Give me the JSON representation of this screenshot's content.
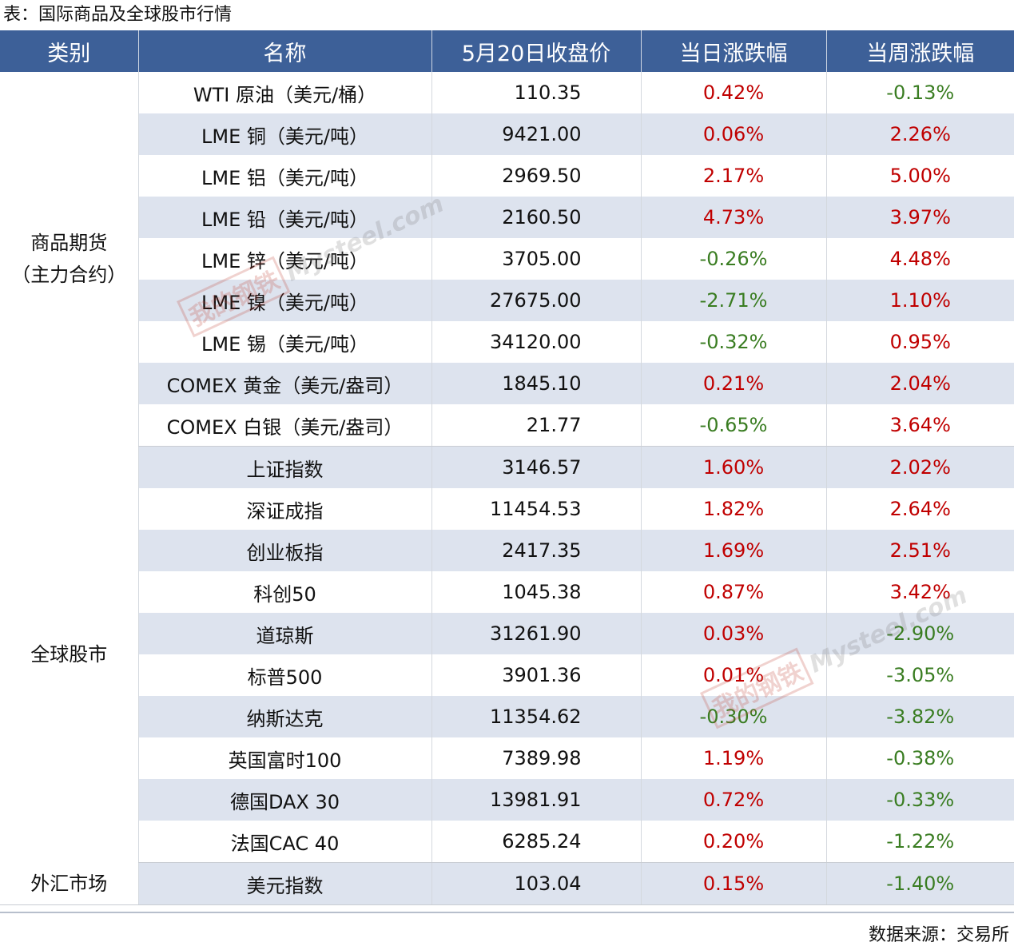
{
  "caption": "表：国际商品及全球股市行情",
  "headers": {
    "category": "类别",
    "name": "名称",
    "price": "5月20日收盘价",
    "daily": "当日涨跌幅",
    "weekly": "当周涨跌幅"
  },
  "groups": [
    {
      "category_line1": "商品期货",
      "category_line2": "（主力合约）",
      "rows": [
        {
          "name": "WTI 原油（美元/桶）",
          "price": "110.35",
          "daily": "0.42%",
          "weekly": "-0.13%"
        },
        {
          "name": "LME 铜（美元/吨）",
          "price": "9421.00",
          "daily": "0.06%",
          "weekly": "2.26%"
        },
        {
          "name": "LME 铝（美元/吨）",
          "price": "2969.50",
          "daily": "2.17%",
          "weekly": "5.00%"
        },
        {
          "name": "LME 铅（美元/吨）",
          "price": "2160.50",
          "daily": "4.73%",
          "weekly": "3.97%"
        },
        {
          "name": "LME 锌（美元/吨）",
          "price": "3705.00",
          "daily": "-0.26%",
          "weekly": "4.48%"
        },
        {
          "name": "LME 镍（美元/吨）",
          "price": "27675.00",
          "daily": "-2.71%",
          "weekly": "1.10%"
        },
        {
          "name": "LME 锡（美元/吨）",
          "price": "34120.00",
          "daily": "-0.32%",
          "weekly": "0.95%"
        },
        {
          "name": "COMEX 黄金（美元/盎司）",
          "price": "1845.10",
          "daily": "0.21%",
          "weekly": "2.04%"
        },
        {
          "name": "COMEX 白银（美元/盎司）",
          "price": "21.77",
          "daily": "-0.65%",
          "weekly": "3.64%"
        }
      ]
    },
    {
      "category_line1": "全球股市",
      "category_line2": "",
      "rows": [
        {
          "name": "上证指数",
          "price": "3146.57",
          "daily": "1.60%",
          "weekly": "2.02%"
        },
        {
          "name": "深证成指",
          "price": "11454.53",
          "daily": "1.82%",
          "weekly": "2.64%"
        },
        {
          "name": "创业板指",
          "price": "2417.35",
          "daily": "1.69%",
          "weekly": "2.51%"
        },
        {
          "name": "科创50",
          "price": "1045.38",
          "daily": "0.87%",
          "weekly": "3.42%"
        },
        {
          "name": "道琼斯",
          "price": "31261.90",
          "daily": "0.03%",
          "weekly": "-2.90%"
        },
        {
          "name": "标普500",
          "price": "3901.36",
          "daily": "0.01%",
          "weekly": "-3.05%"
        },
        {
          "name": "纳斯达克",
          "price": "11354.62",
          "daily": "-0.30%",
          "weekly": "-3.82%"
        },
        {
          "name": "英国富时100",
          "price": "7389.98",
          "daily": "1.19%",
          "weekly": "-0.38%"
        },
        {
          "name": "德国DAX 30",
          "price": "13981.91",
          "daily": "0.72%",
          "weekly": "-0.33%"
        },
        {
          "name": "法国CAC 40",
          "price": "6285.24",
          "daily": "0.20%",
          "weekly": "-1.22%"
        }
      ]
    },
    {
      "category_line1": "外汇市场",
      "category_line2": "",
      "rows": [
        {
          "name": "美元指数",
          "price": "103.04",
          "daily": "0.15%",
          "weekly": "-1.40%"
        }
      ]
    }
  ],
  "watermark": {
    "mark": "我的钢铁",
    "text": "Mysteel.com"
  },
  "source": "数据来源：交易所",
  "colors": {
    "header_bg": "#3d6098",
    "stripe": "#dde3ee",
    "up": "#c00000",
    "down": "#3a7d22"
  }
}
